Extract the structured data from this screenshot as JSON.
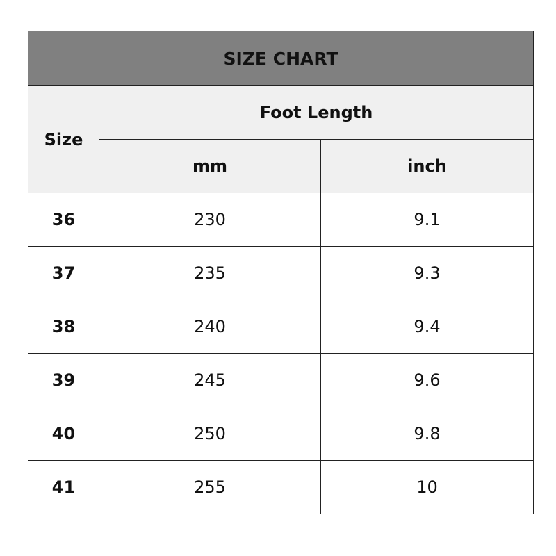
{
  "title": "SIZE CHART",
  "headers": {
    "size": "Size",
    "foot_length": "Foot Length",
    "mm": "mm",
    "inch": "inch"
  },
  "colors": {
    "title_bg": "#808080",
    "header_bg": "#f0f0f0"
  },
  "rows": [
    {
      "size": "36",
      "mm": "230",
      "inch": "9.1"
    },
    {
      "size": "37",
      "mm": "235",
      "inch": "9.3"
    },
    {
      "size": "38",
      "mm": "240",
      "inch": "9.4"
    },
    {
      "size": "39",
      "mm": "245",
      "inch": "9.6"
    },
    {
      "size": "40",
      "mm": "250",
      "inch": "9.8"
    },
    {
      "size": "41",
      "mm": "255",
      "inch": "10"
    }
  ]
}
